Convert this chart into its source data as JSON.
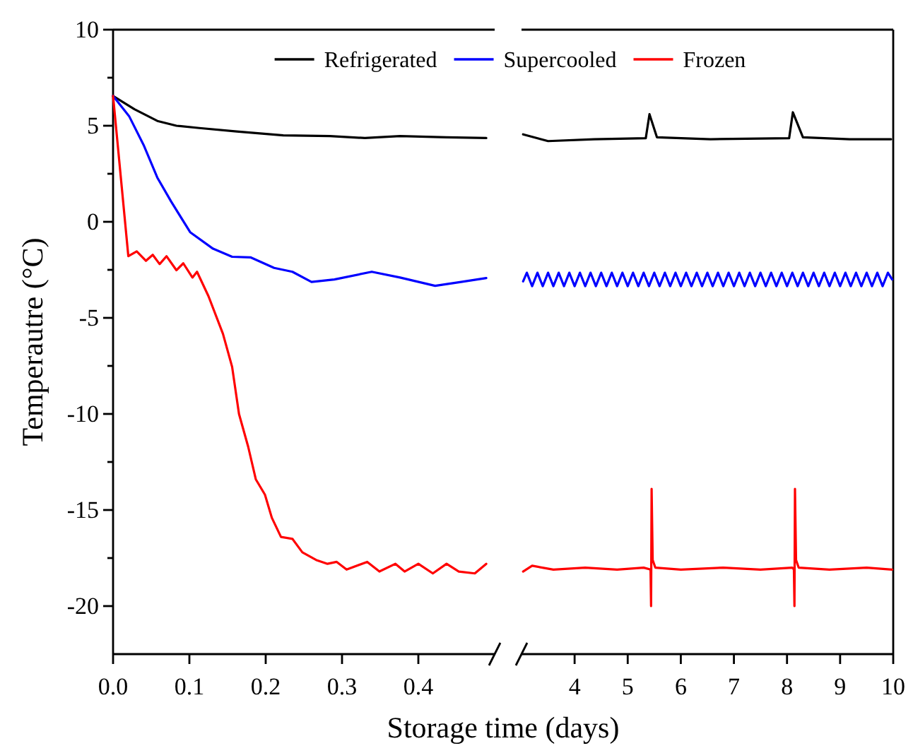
{
  "chart_data": [
    {
      "type": "line",
      "xlabel": "Storage time (days)",
      "ylabel": "Temperautre (°C)",
      "legend": "top",
      "xlim": [
        0,
        0.5
      ],
      "xticks": [
        {
          "value": 0,
          "label": "0.0"
        },
        0.1,
        0.2,
        0.3,
        0.4
      ],
      "ylim": [
        -22.5,
        10
      ],
      "yticks": [
        -20,
        {
          "value": -17.5,
          "label": null
        },
        -15,
        {
          "value": -12.5,
          "label": null
        },
        -10,
        {
          "value": -7.5,
          "label": null
        },
        -5,
        {
          "value": -2.5,
          "label": null
        },
        0,
        {
          "value": 2.5,
          "label": null
        },
        5,
        {
          "value": 7.5,
          "label": null
        },
        10
      ],
      "series": [
        {
          "name": "Refrigerated",
          "color": "#000000",
          "x": [
            0,
            0.028,
            0.058,
            0.083,
            0.113,
            0.162,
            0.223,
            0.284,
            0.33,
            0.376,
            0.437,
            0.489
          ],
          "values": [
            6.55,
            5.86,
            5.25,
            5.0,
            4.88,
            4.7,
            4.5,
            4.46,
            4.36,
            4.46,
            4.4,
            4.36
          ]
        },
        {
          "name": "Supercooled",
          "color": "#0000ff",
          "x": [
            0,
            0.021,
            0.04,
            0.058,
            0.076,
            0.101,
            0.131,
            0.156,
            0.18,
            0.211,
            0.235,
            0.26,
            0.29,
            0.339,
            0.376,
            0.422,
            0.456,
            0.489
          ],
          "values": [
            6.55,
            5.5,
            4.0,
            2.3,
            1.06,
            -0.54,
            -1.4,
            -1.82,
            -1.85,
            -2.4,
            -2.6,
            -3.13,
            -3.0,
            -2.6,
            -2.9,
            -3.33,
            -3.13,
            -2.93
          ]
        },
        {
          "name": "Frozen",
          "color": "#ff0000",
          "x": [
            0,
            0.009,
            0.02,
            0.031,
            0.043,
            0.052,
            0.061,
            0.07,
            0.083,
            0.092,
            0.104,
            0.11,
            0.125,
            0.144,
            0.156,
            0.165,
            0.177,
            0.187,
            0.199,
            0.208,
            0.22,
            0.235,
            0.248,
            0.266,
            0.281,
            0.293,
            0.306,
            0.333,
            0.349,
            0.37,
            0.382,
            0.4,
            0.419,
            0.437,
            0.453,
            0.474,
            0.489
          ],
          "values": [
            6.55,
            2.8,
            -1.79,
            -1.54,
            -2.03,
            -1.72,
            -2.2,
            -1.79,
            -2.52,
            -2.16,
            -2.9,
            -2.6,
            -3.87,
            -5.83,
            -7.55,
            -10.0,
            -11.7,
            -13.4,
            -14.2,
            -15.4,
            -16.4,
            -16.5,
            -17.2,
            -17.6,
            -17.8,
            -17.7,
            -18.1,
            -17.7,
            -18.2,
            -17.8,
            -18.2,
            -17.8,
            -18.3,
            -17.8,
            -18.2,
            -18.3,
            -17.8
          ]
        }
      ]
    },
    {
      "type": "line",
      "tick_labels": "x",
      "xlim": [
        3,
        10
      ],
      "xticks": [
        4,
        5,
        6,
        7,
        8,
        9,
        10
      ],
      "ylim": [
        -22.5,
        10
      ],
      "series": [
        {
          "color": "#000000",
          "x": [
            3.03,
            3.5,
            4.37,
            5.34,
            5.41,
            5.55,
            6.56,
            8.04,
            8.11,
            8.3,
            9.18,
            9.96
          ],
          "values": [
            4.55,
            4.2,
            4.3,
            4.35,
            5.6,
            4.4,
            4.3,
            4.35,
            5.7,
            4.4,
            4.3,
            4.3
          ]
        },
        {
          "color": "#0000ff",
          "x": [
            3.03,
            3.1,
            3.2,
            3.3,
            3.4,
            3.5,
            3.6,
            3.7,
            3.8,
            3.9,
            4.0,
            4.1,
            4.2,
            4.3,
            4.4,
            4.5,
            4.6,
            4.7,
            4.8,
            4.9,
            5.0,
            5.1,
            5.2,
            5.3,
            5.4,
            5.5,
            5.6,
            5.7,
            5.8,
            5.9,
            6.0,
            6.1,
            6.2,
            6.3,
            6.4,
            6.5,
            6.6,
            6.7,
            6.8,
            6.9,
            7.0,
            7.1,
            7.2,
            7.3,
            7.4,
            7.5,
            7.6,
            7.7,
            7.8,
            7.9,
            8.0,
            8.1,
            8.2,
            8.3,
            8.4,
            8.5,
            8.6,
            8.7,
            8.8,
            8.9,
            9.0,
            9.1,
            9.2,
            9.3,
            9.4,
            9.5,
            9.6,
            9.7,
            9.8,
            9.9,
            9.98
          ],
          "values": [
            -3.1,
            -2.65,
            -3.35,
            -2.65,
            -3.35,
            -2.65,
            -3.35,
            -2.65,
            -3.35,
            -2.65,
            -3.35,
            -2.65,
            -3.35,
            -2.65,
            -3.35,
            -2.65,
            -3.35,
            -2.65,
            -3.35,
            -2.65,
            -3.35,
            -2.65,
            -3.35,
            -2.65,
            -3.35,
            -2.65,
            -3.35,
            -2.65,
            -3.35,
            -2.65,
            -3.35,
            -2.65,
            -3.35,
            -2.65,
            -3.35,
            -2.65,
            -3.35,
            -2.65,
            -3.35,
            -2.65,
            -3.35,
            -2.65,
            -3.35,
            -2.65,
            -3.35,
            -2.65,
            -3.35,
            -2.65,
            -3.35,
            -2.65,
            -3.35,
            -2.65,
            -3.35,
            -2.65,
            -3.35,
            -2.65,
            -3.35,
            -2.65,
            -3.35,
            -2.65,
            -3.35,
            -2.65,
            -3.35,
            -2.65,
            -3.35,
            -2.65,
            -3.35,
            -2.65,
            -3.35,
            -2.65,
            -3.0
          ]
        },
        {
          "color": "#ff0000",
          "x": [
            3.03,
            3.2,
            3.6,
            4.2,
            4.8,
            5.3,
            5.43,
            5.44,
            5.45,
            5.47,
            5.52,
            6.0,
            6.8,
            7.5,
            8.1,
            8.13,
            8.14,
            8.15,
            8.17,
            8.22,
            8.8,
            9.5,
            9.98
          ],
          "values": [
            -18.2,
            -17.9,
            -18.1,
            -18.0,
            -18.1,
            -18.0,
            -18.1,
            -20.0,
            -13.9,
            -17.6,
            -18.0,
            -18.1,
            -18.0,
            -18.1,
            -18.0,
            -18.1,
            -20.0,
            -13.9,
            -17.6,
            -18.0,
            -18.1,
            -18.0,
            -18.1
          ]
        }
      ]
    }
  ]
}
